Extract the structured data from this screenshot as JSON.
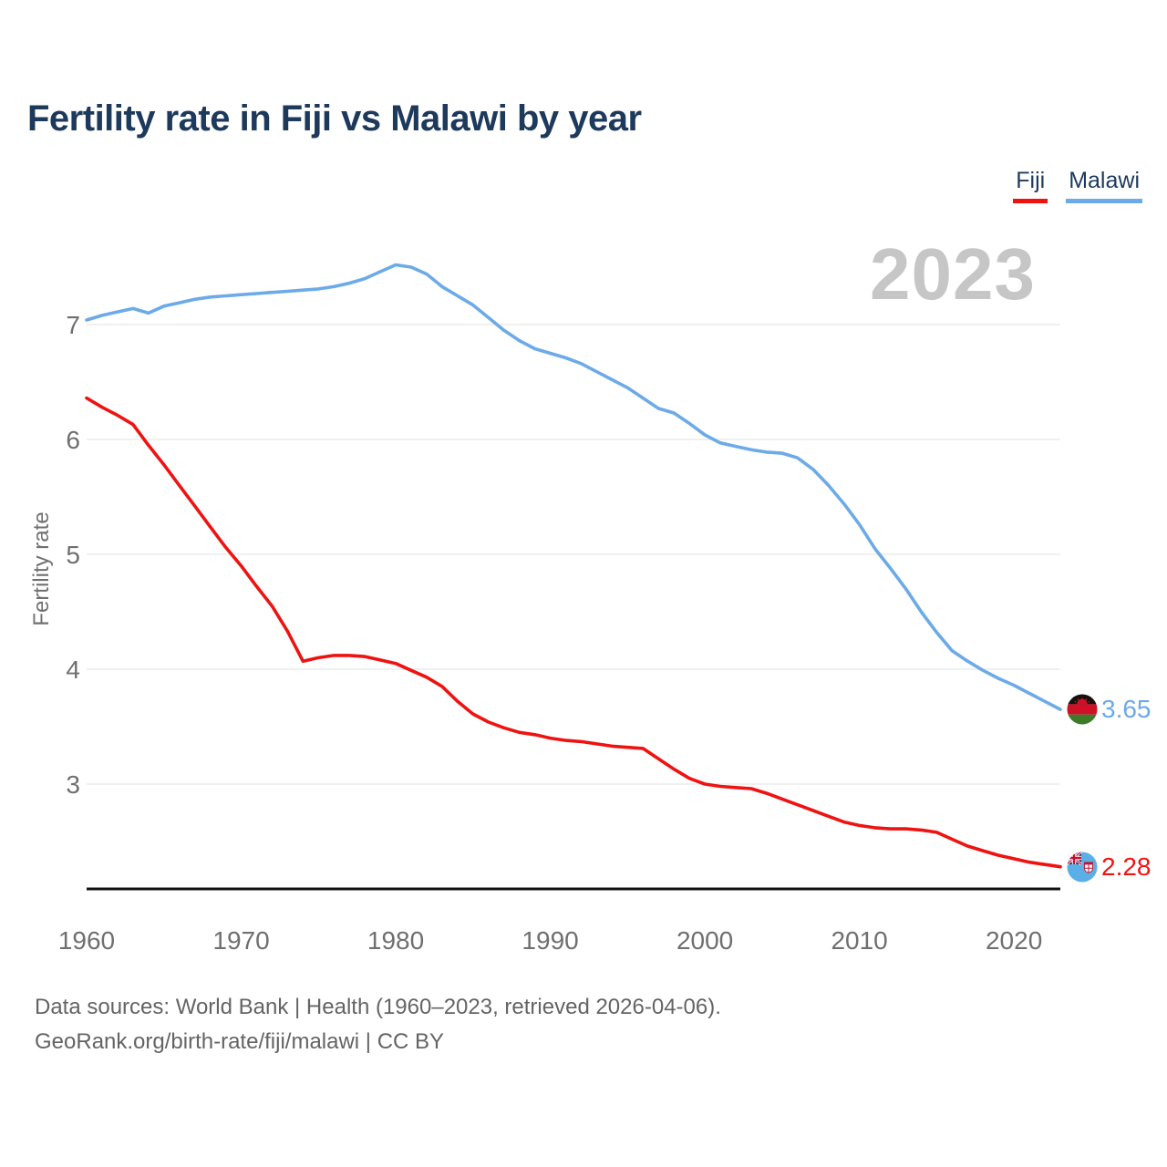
{
  "page": {
    "title": "Fertility rate in Fiji vs Malawi by year",
    "watermark": "2023",
    "footer_line1": "Data sources: World Bank | Health (1960–2023, retrieved 2026-04-06).",
    "footer_line2": "GeoRank.org/birth-rate/fiji/malawi | CC BY"
  },
  "legend": [
    {
      "label": "Fiji",
      "color": "#ee1311"
    },
    {
      "label": "Malawi",
      "color": "#6caae8"
    }
  ],
  "icons": {
    "fiji": "fiji-flag-icon",
    "malawi": "malawi-flag-icon"
  },
  "chart_data": {
    "type": "line",
    "title": "Fertility rate in Fiji vs Malawi by year",
    "xlabel": "",
    "ylabel": "Fertility rate",
    "x_range": [
      1960,
      2023
    ],
    "xticks": [
      1960,
      1970,
      1980,
      1990,
      2000,
      2010,
      2020
    ],
    "yticks": [
      3,
      4,
      5,
      6,
      7
    ],
    "ylim": [
      2.1,
      7.9
    ],
    "grid": "horizontal",
    "legend_position": "top-right",
    "watermark": "2023",
    "x": [
      1960,
      1961,
      1962,
      1963,
      1964,
      1965,
      1966,
      1967,
      1968,
      1969,
      1970,
      1971,
      1972,
      1973,
      1974,
      1975,
      1976,
      1977,
      1978,
      1979,
      1980,
      1981,
      1982,
      1983,
      1984,
      1985,
      1986,
      1987,
      1988,
      1989,
      1990,
      1991,
      1992,
      1993,
      1994,
      1995,
      1996,
      1997,
      1998,
      1999,
      2000,
      2001,
      2002,
      2003,
      2004,
      2005,
      2006,
      2007,
      2008,
      2009,
      2010,
      2011,
      2012,
      2013,
      2014,
      2015,
      2016,
      2017,
      2018,
      2019,
      2020,
      2021,
      2022,
      2023
    ],
    "series": [
      {
        "name": "Fiji",
        "color": "#ee1311",
        "end_label": "2.28",
        "values": [
          6.36,
          6.28,
          6.21,
          6.13,
          5.95,
          5.78,
          5.6,
          5.42,
          5.24,
          5.06,
          4.9,
          4.72,
          4.55,
          4.33,
          4.07,
          4.1,
          4.12,
          4.12,
          4.11,
          4.08,
          4.05,
          3.99,
          3.93,
          3.85,
          3.72,
          3.61,
          3.54,
          3.49,
          3.45,
          3.43,
          3.4,
          3.38,
          3.37,
          3.35,
          3.33,
          3.32,
          3.31,
          3.22,
          3.13,
          3.05,
          3.0,
          2.98,
          2.97,
          2.96,
          2.92,
          2.87,
          2.82,
          2.77,
          2.72,
          2.67,
          2.64,
          2.62,
          2.61,
          2.61,
          2.6,
          2.58,
          2.52,
          2.46,
          2.42,
          2.38,
          2.35,
          2.32,
          2.3,
          2.28
        ]
      },
      {
        "name": "Malawi",
        "color": "#6caae8",
        "end_label": "3.65",
        "values": [
          7.04,
          7.08,
          7.11,
          7.14,
          7.1,
          7.16,
          7.19,
          7.22,
          7.24,
          7.25,
          7.26,
          7.27,
          7.28,
          7.29,
          7.3,
          7.31,
          7.33,
          7.36,
          7.4,
          7.46,
          7.52,
          7.5,
          7.44,
          7.33,
          7.25,
          7.17,
          7.06,
          6.95,
          6.86,
          6.79,
          6.75,
          6.71,
          6.66,
          6.59,
          6.52,
          6.45,
          6.36,
          6.27,
          6.23,
          6.14,
          6.04,
          5.97,
          5.94,
          5.91,
          5.89,
          5.88,
          5.84,
          5.74,
          5.6,
          5.44,
          5.26,
          5.05,
          4.88,
          4.7,
          4.5,
          4.32,
          4.16,
          4.07,
          3.99,
          3.92,
          3.86,
          3.79,
          3.72,
          3.65
        ]
      }
    ]
  }
}
